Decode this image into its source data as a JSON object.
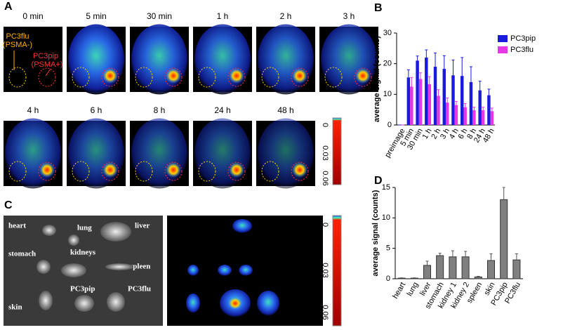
{
  "panels": {
    "a": "A",
    "b": "B",
    "c": "C",
    "d": "D"
  },
  "panel_a": {
    "times": [
      "0 min",
      "5 min",
      "30 min",
      "1 h",
      "2 h",
      "3 h",
      "4 h",
      "6 h",
      "8 h",
      "24 h",
      "48 h"
    ],
    "annotations": [
      "PC3flu",
      "(PSMA-)",
      "PC3pip",
      "(PSMA+)"
    ],
    "colorbar_labels": [
      "0",
      "0.03",
      "0.06"
    ]
  },
  "panel_c": {
    "organs": [
      "heart",
      "lung",
      "liver",
      "stomach",
      "kidneys",
      "spleen",
      "skin",
      "PC3pip",
      "PC3flu"
    ],
    "colorbar_labels": [
      "0",
      "0.03",
      "0.06"
    ]
  },
  "chart_data": [
    {
      "type": "bar",
      "y_label": "average signal (counts)",
      "categories": [
        "preimage",
        "5 min",
        "30 min",
        "1 h",
        "2 h",
        "3 h",
        "4 h",
        "6 h",
        "8 h",
        "24 h",
        "48 h"
      ],
      "series": [
        {
          "name": "PC3pip",
          "color": "#1a1adc",
          "values": [
            0,
            15.5,
            21,
            22,
            19,
            18.3,
            16.2,
            16,
            14,
            11.3,
            9.7
          ],
          "errors": [
            0,
            2.5,
            1.5,
            2.5,
            4.5,
            4.3,
            5,
            6,
            5,
            3,
            2
          ]
        },
        {
          "name": "PC3flu",
          "color": "#e636e6",
          "values": [
            0,
            12.5,
            15,
            13.3,
            9.5,
            7.3,
            6.5,
            5.8,
            4.8,
            4.8,
            4.5
          ],
          "errors": [
            0,
            3,
            2,
            2.5,
            2,
            1.5,
            1.2,
            1.2,
            1,
            1,
            1
          ]
        }
      ],
      "ylim": [
        0,
        30
      ],
      "yticks": [
        0,
        10,
        20,
        30
      ],
      "legend": "top-right"
    },
    {
      "type": "bar",
      "y_label": "average signal (counts)",
      "categories": [
        "heart",
        "lung",
        "liver",
        "stomach",
        "kidney 1",
        "kidney 2",
        "spleen",
        "skin",
        "PC3pip",
        "PC3flu"
      ],
      "series": [
        {
          "color": "#808080",
          "values": [
            0.1,
            0.1,
            2.2,
            3.8,
            3.6,
            3.6,
            0.3,
            3,
            13,
            3.1
          ],
          "errors": [
            0.05,
            0.05,
            0.7,
            0.4,
            1,
            0.9,
            0.1,
            1.1,
            2,
            1
          ]
        }
      ],
      "ylim": [
        0,
        15
      ],
      "yticks": [
        0,
        5,
        10,
        15
      ]
    }
  ]
}
